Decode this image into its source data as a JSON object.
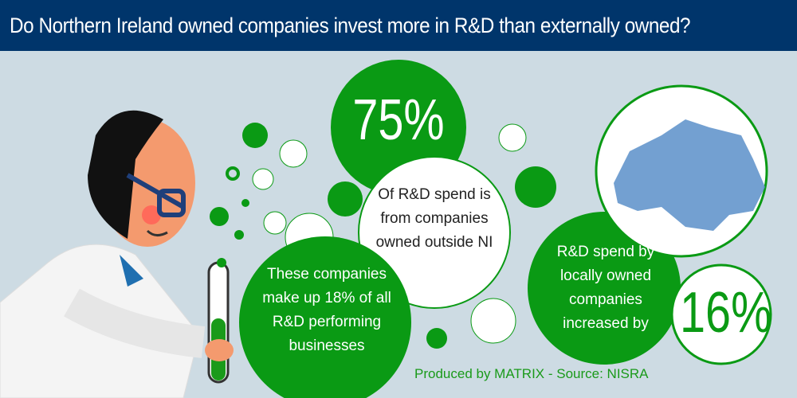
{
  "header": {
    "title": "Do Northern Ireland owned companies invest more in R&D than externally owned?"
  },
  "stats": {
    "external_percent": "75%",
    "external_caption": "Of R&D spend is from companies owned outside NI",
    "share_caption": "These companies make up 18% of all R&D performing businesses",
    "local_caption": "R&D spend by locally owned companies increased by",
    "local_percent": "16%"
  },
  "footer": {
    "credit": "Produced by MATRIX - Source: NISRA"
  },
  "colors": {
    "header": "#00356b",
    "background": "#cddbe3",
    "green": "#0a9a14",
    "map": "#5b8fc9"
  },
  "illustration": {
    "figure": "scientist-with-test-tube",
    "map": "northern-ireland-map"
  }
}
